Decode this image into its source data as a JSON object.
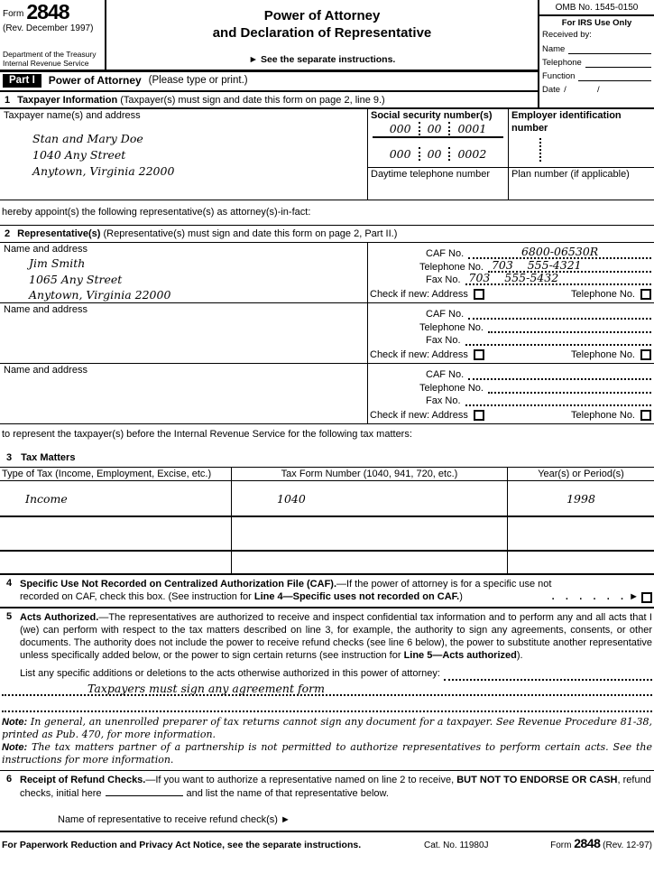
{
  "header": {
    "form_label": "Form",
    "form_number": "2848",
    "revision": "(Rev. December 1997)",
    "agency_line1": "Department of the Treasury",
    "agency_line2": "Internal Revenue Service",
    "title_line1": "Power of Attorney",
    "title_line2": "and Declaration of Representative",
    "instructions_note": "► See the separate instructions.",
    "omb": "OMB No. 1545-0150",
    "irs_use": {
      "title": "For IRS Use Only",
      "received_by": "Received by:",
      "name_label": "Name",
      "telephone_label": "Telephone",
      "function_label": "Function",
      "date_label": "Date",
      "date_value": "/             /"
    }
  },
  "part1": {
    "badge": "Part I",
    "title": "Power of Attorney",
    "subtitle": "(Please type or print.)"
  },
  "line1": {
    "number": "1",
    "title": "Taxpayer Information",
    "subtitle": "(Taxpayer(s) must sign and date this form on page 2, line 9.)",
    "taxpayer_label": "Taxpayer name(s) and address",
    "taxpayer_name": "Stan and Mary Doe",
    "taxpayer_street": "1040 Any Street",
    "taxpayer_city": "Anytown, Virginia 22000",
    "ssn_label": "Social security number(s)",
    "ssn1": {
      "area": "000",
      "group": "00",
      "serial": "0001"
    },
    "ssn2": {
      "area": "000",
      "group": "00",
      "serial": "0002"
    },
    "daytime_phone_label": "Daytime telephone number",
    "ein_label": "Employer identification number",
    "plan_label": "Plan number (if applicable)",
    "appoint_text": "hereby appoint(s) the following representative(s) as attorney(s)-in-fact:"
  },
  "line2": {
    "number": "2",
    "title": "Representative(s)",
    "subtitle": "(Representative(s) must sign and date this form on page 2, Part II.)",
    "name_label": "Name and address",
    "caf_label": "CAF No.",
    "telephone_label": "Telephone No.",
    "fax_label": "Fax No.",
    "check_new_label": "Check if new: Address",
    "check_tel_label": "Telephone No.",
    "representatives": [
      {
        "name": "Jim Smith",
        "street": "1065 Any Street",
        "city": "Anytown, Virginia 22000",
        "caf": "6800-06530R",
        "telephone": "703    555-4321",
        "fax": "703    555-5432"
      },
      {
        "name": "",
        "street": "",
        "city": "",
        "caf": "",
        "telephone": "",
        "fax": ""
      },
      {
        "name": "",
        "street": "",
        "city": "",
        "caf": "",
        "telephone": "",
        "fax": ""
      }
    ],
    "represent_text": "to represent the taxpayer(s) before the Internal Revenue Service for the following tax matters:"
  },
  "line3": {
    "number": "3",
    "title": "Tax Matters",
    "columns": [
      "Type of Tax (Income, Employment, Excise, etc.)",
      "Tax Form Number (1040, 941, 720, etc.)",
      "Year(s) or Period(s)"
    ],
    "rows": [
      [
        "Income",
        "1040",
        "1998"
      ],
      [
        "",
        "",
        ""
      ],
      [
        "",
        "",
        ""
      ]
    ]
  },
  "line4": {
    "number": "4",
    "title": "Specific Use Not Recorded on Centralized Authorization File (CAF).",
    "text1": "—If the power of attorney is for a specific use not",
    "text2": "recorded on CAF, check this box. (See instruction for ",
    "ref": "Line 4—Specific uses not recorded on CAF.",
    "text3": ")",
    "dots": ".    .    .    .    .    .",
    "arrow": "►"
  },
  "line5": {
    "number": "5",
    "title": "Acts Authorized.",
    "body": "—The representatives are authorized to receive and inspect confidential tax information and to perform any and all acts that I (we) can perform with respect to the tax matters described on line 3, for example, the authority to sign any agreements, consents, or other documents. The authority does not include the power to receive refund checks (see line 6 below), the power to substitute another representative unless specifically added below, or the power to sign certain returns (see instruction for ",
    "ref": "Line 5—Acts authorized",
    "body_end": ").",
    "list_label": "List any specific additions or deletions to the acts otherwise authorized in this power of attorney:",
    "addition_entry": "Taxpayers must sign any agreement form"
  },
  "notes": [
    {
      "label": "Note:",
      "text": "In general, an unenrolled preparer of tax returns cannot sign any document for a taxpayer. See Revenue Procedure 81-38, printed as Pub. 470, for more information."
    },
    {
      "label": "Note:",
      "text": "The tax matters partner of a partnership is not permitted to authorize representatives to perform certain acts. See the instructions for more information."
    }
  ],
  "line6": {
    "number": "6",
    "title": "Receipt of Refund Checks.",
    "text1": "—If you want to authorize a representative named on line 2 to receive, ",
    "bold_text": "BUT NOT TO ENDORSE OR CASH",
    "text2": ", refund checks, initial here",
    "text3": "and list the name of that representative below.",
    "refund_name_label": "Name of representative to receive refund check(s) ►"
  },
  "footer": {
    "notice": "For Paperwork Reduction and Privacy Act Notice, see the separate instructions.",
    "cat_no": "Cat. No. 11980J",
    "form_label": "Form",
    "form_number": "2848",
    "revision": "(Rev. 12-97)"
  }
}
